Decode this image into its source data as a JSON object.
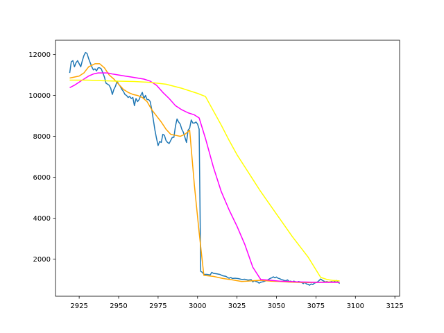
{
  "chart_data": {
    "type": "line",
    "title": "",
    "xlabel": "",
    "ylabel": "",
    "xlim": [
      2910,
      3128
    ],
    "ylim": [
      180,
      12700
    ],
    "grid": false,
    "legend": "none",
    "x_ticks": [
      2925,
      2950,
      2975,
      3000,
      3025,
      3050,
      3075,
      3100,
      3125
    ],
    "y_ticks": [
      2000,
      4000,
      6000,
      8000,
      10000,
      12000
    ],
    "series": [
      {
        "color": "#1f77b4",
        "points": [
          [
            2919,
            11100
          ],
          [
            2920,
            11650
          ],
          [
            2921,
            11700
          ],
          [
            2922,
            11400
          ],
          [
            2923,
            11600
          ],
          [
            2924,
            11700
          ],
          [
            2925,
            11550
          ],
          [
            2926,
            11400
          ],
          [
            2927,
            11700
          ],
          [
            2928,
            11950
          ],
          [
            2929,
            12100
          ],
          [
            2930,
            12050
          ],
          [
            2931,
            11800
          ],
          [
            2932,
            11600
          ],
          [
            2933,
            11400
          ],
          [
            2934,
            11250
          ],
          [
            2935,
            11300
          ],
          [
            2936,
            11200
          ],
          [
            2937,
            11350
          ],
          [
            2938,
            11350
          ],
          [
            2939,
            11300
          ],
          [
            2940,
            11100
          ],
          [
            2941,
            10900
          ],
          [
            2942,
            10600
          ],
          [
            2943,
            10550
          ],
          [
            2944,
            10500
          ],
          [
            2945,
            10350
          ],
          [
            2946,
            10050
          ],
          [
            2947,
            10300
          ],
          [
            2948,
            10450
          ],
          [
            2949,
            10700
          ],
          [
            2950,
            10550
          ],
          [
            2951,
            10450
          ],
          [
            2952,
            10300
          ],
          [
            2953,
            10200
          ],
          [
            2954,
            10050
          ],
          [
            2955,
            10000
          ],
          [
            2956,
            9900
          ],
          [
            2957,
            9950
          ],
          [
            2958,
            9850
          ],
          [
            2959,
            9900
          ],
          [
            2960,
            9500
          ],
          [
            2961,
            9850
          ],
          [
            2962,
            9700
          ],
          [
            2963,
            9800
          ],
          [
            2964,
            10000
          ],
          [
            2965,
            10150
          ],
          [
            2966,
            9850
          ],
          [
            2967,
            10000
          ],
          [
            2968,
            9800
          ],
          [
            2969,
            9800
          ],
          [
            2970,
            9700
          ],
          [
            2971,
            9300
          ],
          [
            2972,
            8800
          ],
          [
            2973,
            8300
          ],
          [
            2974,
            7900
          ],
          [
            2975,
            7550
          ],
          [
            2976,
            7750
          ],
          [
            2977,
            7700
          ],
          [
            2978,
            8100
          ],
          [
            2979,
            8050
          ],
          [
            2980,
            7800
          ],
          [
            2981,
            7700
          ],
          [
            2982,
            7650
          ],
          [
            2983,
            7800
          ],
          [
            2984,
            7950
          ],
          [
            2985,
            7950
          ],
          [
            2986,
            8500
          ],
          [
            2987,
            8850
          ],
          [
            2988,
            8700
          ],
          [
            2989,
            8600
          ],
          [
            2990,
            8350
          ],
          [
            2991,
            8200
          ],
          [
            2992,
            7950
          ],
          [
            2993,
            7700
          ],
          [
            2994,
            8300
          ],
          [
            2995,
            8400
          ],
          [
            2996,
            8800
          ],
          [
            2997,
            8650
          ],
          [
            2998,
            8650
          ],
          [
            2999,
            8700
          ],
          [
            3000,
            8600
          ],
          [
            3001,
            8350
          ],
          [
            3002,
            1400
          ],
          [
            3003,
            1350
          ],
          [
            3004,
            1250
          ],
          [
            3006,
            1250
          ],
          [
            3008,
            1220
          ],
          [
            3009,
            1350
          ],
          [
            3010,
            1300
          ],
          [
            3012,
            1280
          ],
          [
            3014,
            1250
          ],
          [
            3016,
            1180
          ],
          [
            3018,
            1150
          ],
          [
            3019,
            1100
          ],
          [
            3020,
            1060
          ],
          [
            3021,
            1100
          ],
          [
            3022,
            1050
          ],
          [
            3024,
            1060
          ],
          [
            3026,
            1040
          ],
          [
            3028,
            1000
          ],
          [
            3030,
            1010
          ],
          [
            3032,
            970
          ],
          [
            3034,
            990
          ],
          [
            3035,
            880
          ],
          [
            3036,
            940
          ],
          [
            3037,
            900
          ],
          [
            3038,
            880
          ],
          [
            3039,
            820
          ],
          [
            3040,
            860
          ],
          [
            3042,
            900
          ],
          [
            3044,
            960
          ],
          [
            3046,
            1050
          ],
          [
            3047,
            1080
          ],
          [
            3048,
            1130
          ],
          [
            3049,
            1080
          ],
          [
            3050,
            1120
          ],
          [
            3051,
            1060
          ],
          [
            3052,
            1040
          ],
          [
            3053,
            1000
          ],
          [
            3054,
            980
          ],
          [
            3055,
            950
          ],
          [
            3056,
            940
          ],
          [
            3057,
            980
          ],
          [
            3058,
            900
          ],
          [
            3059,
            920
          ],
          [
            3060,
            880
          ],
          [
            3061,
            920
          ],
          [
            3062,
            890
          ],
          [
            3063,
            870
          ],
          [
            3064,
            900
          ],
          [
            3065,
            880
          ],
          [
            3066,
            850
          ],
          [
            3067,
            800
          ],
          [
            3068,
            860
          ],
          [
            3069,
            780
          ],
          [
            3070,
            760
          ],
          [
            3071,
            720
          ],
          [
            3072,
            780
          ],
          [
            3073,
            750
          ],
          [
            3074,
            820
          ],
          [
            3075,
            850
          ],
          [
            3076,
            880
          ],
          [
            3077,
            950
          ],
          [
            3078,
            1020
          ],
          [
            3079,
            960
          ],
          [
            3080,
            920
          ],
          [
            3081,
            880
          ],
          [
            3082,
            900
          ],
          [
            3083,
            860
          ],
          [
            3084,
            880
          ],
          [
            3085,
            900
          ],
          [
            3086,
            870
          ],
          [
            3087,
            920
          ],
          [
            3088,
            950
          ],
          [
            3089,
            880
          ],
          [
            3090,
            800
          ]
        ]
      },
      {
        "color": "#ffa500",
        "points": [
          [
            2919,
            10850
          ],
          [
            2925,
            10950
          ],
          [
            2928,
            11100
          ],
          [
            2931,
            11400
          ],
          [
            2935,
            11550
          ],
          [
            2938,
            11550
          ],
          [
            2941,
            11350
          ],
          [
            2944,
            11000
          ],
          [
            2947,
            10800
          ],
          [
            2950,
            10550
          ],
          [
            2953,
            10300
          ],
          [
            2956,
            10150
          ],
          [
            2959,
            10050
          ],
          [
            2962,
            10000
          ],
          [
            2965,
            9900
          ],
          [
            2968,
            9700
          ],
          [
            2971,
            9300
          ],
          [
            2974,
            9000
          ],
          [
            2977,
            8700
          ],
          [
            2980,
            8350
          ],
          [
            2983,
            8100
          ],
          [
            2986,
            8050
          ],
          [
            2989,
            8000
          ],
          [
            2992,
            8100
          ],
          [
            2995,
            8300
          ],
          [
            2998,
            5600
          ],
          [
            3001,
            3300
          ],
          [
            3004,
            1200
          ],
          [
            3010,
            1150
          ],
          [
            3016,
            1050
          ],
          [
            3022,
            980
          ],
          [
            3028,
            900
          ],
          [
            3034,
            930
          ],
          [
            3040,
            960
          ],
          [
            3046,
            920
          ],
          [
            3052,
            900
          ],
          [
            3058,
            870
          ],
          [
            3064,
            860
          ],
          [
            3070,
            850
          ],
          [
            3076,
            860
          ],
          [
            3082,
            880
          ],
          [
            3088,
            870
          ],
          [
            3090,
            860
          ]
        ]
      },
      {
        "color": "#ff00ff",
        "points": [
          [
            2919,
            10380
          ],
          [
            2922,
            10500
          ],
          [
            2925,
            10650
          ],
          [
            2928,
            10800
          ],
          [
            2931,
            10950
          ],
          [
            2934,
            11050
          ],
          [
            2937,
            11100
          ],
          [
            2940,
            11100
          ],
          [
            2943,
            11100
          ],
          [
            2946,
            11050
          ],
          [
            2950,
            11000
          ],
          [
            2954,
            10950
          ],
          [
            2958,
            10900
          ],
          [
            2962,
            10850
          ],
          [
            2966,
            10800
          ],
          [
            2970,
            10700
          ],
          [
            2974,
            10500
          ],
          [
            2978,
            10150
          ],
          [
            2982,
            9850
          ],
          [
            2986,
            9500
          ],
          [
            2990,
            9300
          ],
          [
            2994,
            9150
          ],
          [
            2998,
            9050
          ],
          [
            3001,
            8900
          ],
          [
            3005,
            7900
          ],
          [
            3010,
            6500
          ],
          [
            3015,
            5300
          ],
          [
            3020,
            4400
          ],
          [
            3025,
            3600
          ],
          [
            3030,
            2700
          ],
          [
            3035,
            1600
          ],
          [
            3040,
            1000
          ],
          [
            3046,
            960
          ],
          [
            3052,
            920
          ],
          [
            3058,
            900
          ],
          [
            3064,
            880
          ],
          [
            3070,
            870
          ],
          [
            3076,
            860
          ],
          [
            3082,
            860
          ],
          [
            3088,
            860
          ],
          [
            3090,
            860
          ]
        ]
      },
      {
        "color": "#ffff00",
        "points": [
          [
            2919,
            10750
          ],
          [
            2930,
            10750
          ],
          [
            2940,
            10720
          ],
          [
            2950,
            10700
          ],
          [
            2960,
            10680
          ],
          [
            2970,
            10640
          ],
          [
            2980,
            10550
          ],
          [
            2990,
            10350
          ],
          [
            3000,
            10100
          ],
          [
            3005,
            9950
          ],
          [
            3010,
            9250
          ],
          [
            3015,
            8550
          ],
          [
            3020,
            7800
          ],
          [
            3025,
            7100
          ],
          [
            3030,
            6500
          ],
          [
            3035,
            5900
          ],
          [
            3040,
            5300
          ],
          [
            3045,
            4750
          ],
          [
            3050,
            4200
          ],
          [
            3055,
            3650
          ],
          [
            3060,
            3100
          ],
          [
            3065,
            2600
          ],
          [
            3070,
            2100
          ],
          [
            3074,
            1600
          ],
          [
            3078,
            1100
          ],
          [
            3082,
            1000
          ],
          [
            3086,
            950
          ],
          [
            3090,
            930
          ]
        ]
      }
    ]
  }
}
